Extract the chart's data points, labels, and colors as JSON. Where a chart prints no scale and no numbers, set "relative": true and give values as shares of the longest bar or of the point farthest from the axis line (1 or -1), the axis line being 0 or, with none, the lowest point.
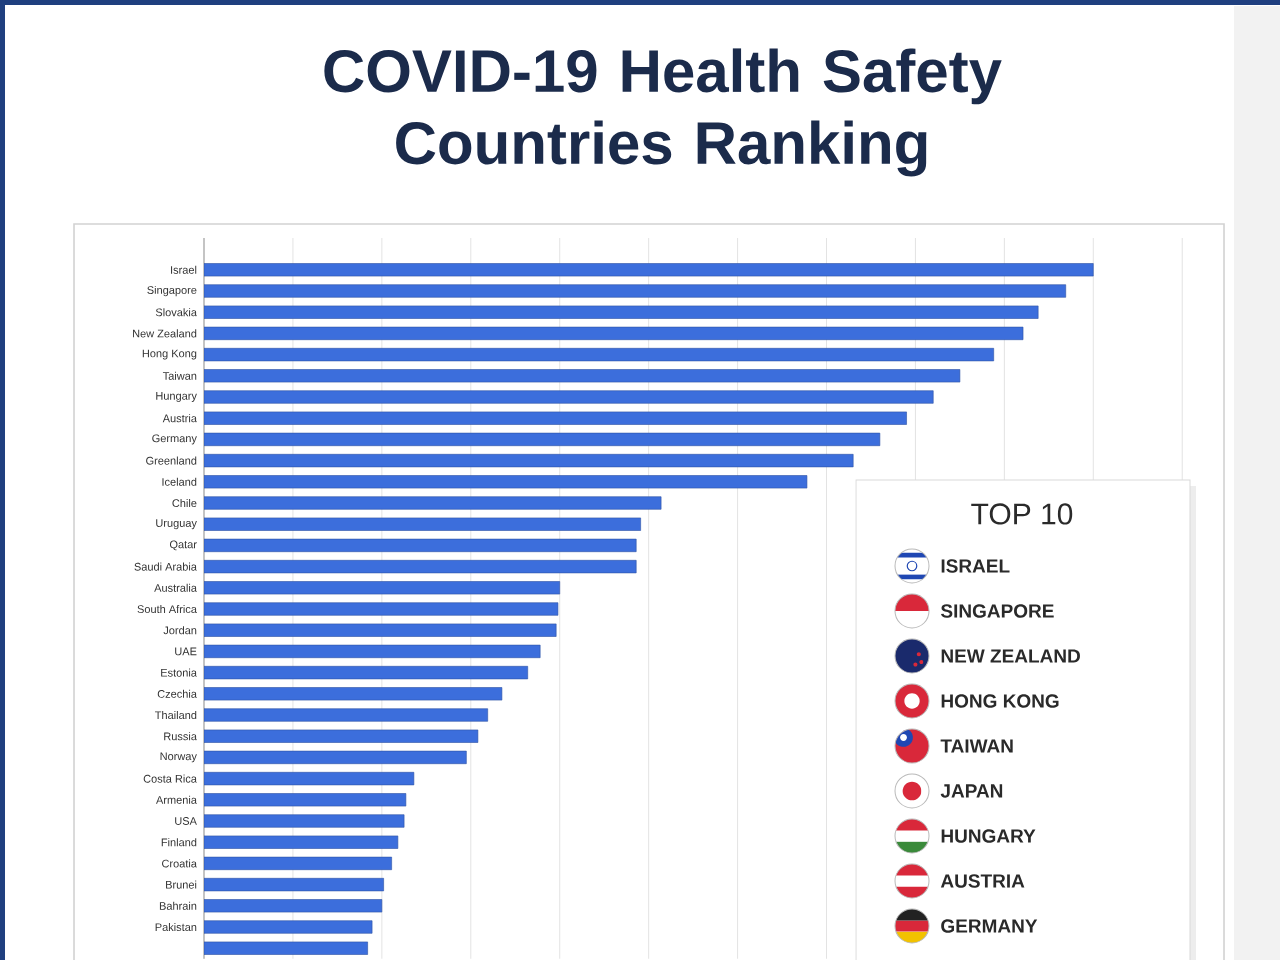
{
  "chart_data": [
    {
      "type": "bar",
      "title": "COVID-19 Health Safety Countries Ranking",
      "orientation": "horizontal",
      "relative": true,
      "grid": "x",
      "color": "#3c6edc",
      "categories": [
        "Israel",
        "Singapore",
        "Slovakia",
        "New Zealand",
        "Hong Kong",
        "Taiwan",
        "Hungary",
        "Austria",
        "Germany",
        "Greenland",
        "Iceland",
        "Chile",
        "Uruguay",
        "Qatar",
        "Saudi Arabia",
        "Australia",
        "South Africa",
        "Jordan",
        "UAE",
        "Estonia",
        "Czechia",
        "Thailand",
        "Russia",
        "Norway",
        "Costa Rica",
        "Armenia",
        "USA",
        "Finland",
        "Croatia",
        "Brunei",
        "Bahrain",
        "Pakistan",
        null
      ],
      "values": [
        1,
        0.969,
        0.938,
        0.921,
        0.888,
        0.85,
        0.82,
        0.79,
        0.76,
        0.73,
        0.678,
        0.514,
        0.491,
        0.486,
        0.486,
        0.4,
        0.398,
        0.396,
        0.378,
        0.364,
        0.335,
        0.319,
        0.308,
        0.295,
        0.236,
        0.227,
        0.225,
        0.218,
        0.211,
        0.202,
        0.2,
        0.189,
        0.184
      ]
    },
    {
      "type": "other",
      "title": "TOP 10",
      "annotations": [
        "ISRAEL",
        "SINGAPORE",
        "NEW ZEALAND",
        "HONG KONG",
        "TAIWAN",
        "JAPAN",
        "HUNGARY",
        "AUSTRIA",
        "GERMANY"
      ]
    }
  ]
}
